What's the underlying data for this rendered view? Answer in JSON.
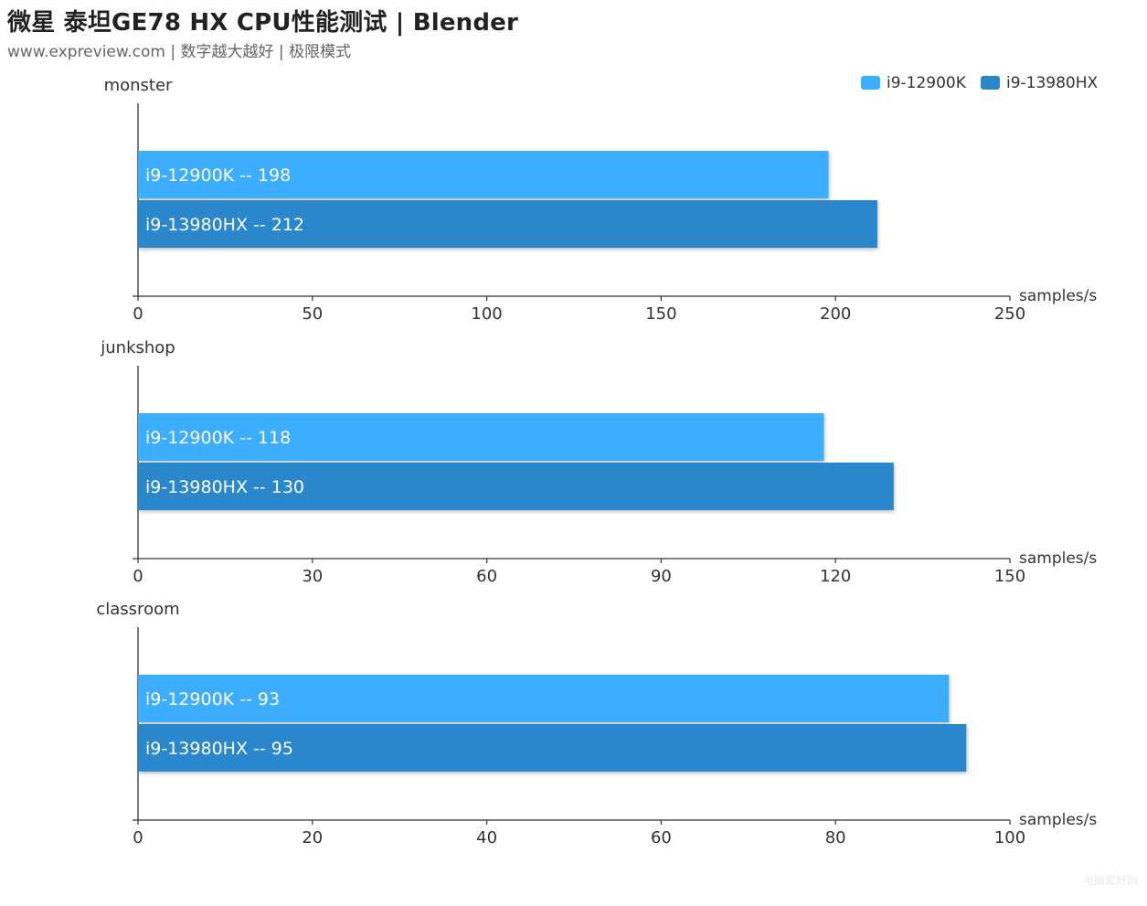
{
  "header": {
    "title": "微星 泰坦GE78 HX CPU性能测试 | Blender",
    "subtitle": "www.expreview.com | 数字越大越好 | 极限模式"
  },
  "legend": [
    {
      "name": "i9-12900K",
      "color": "#3daeff"
    },
    {
      "name": "i9-13980HX",
      "color": "#2a87cb"
    }
  ],
  "chart_data": [
    {
      "type": "bar",
      "orientation": "horizontal",
      "title": "monster",
      "xlabel": "samples/s",
      "xlim": [
        0,
        250
      ],
      "ticks": [
        0,
        50,
        100,
        150,
        200,
        250
      ],
      "series": [
        {
          "name": "i9-12900K",
          "value": 198,
          "label": "i9-12900K  --  198"
        },
        {
          "name": "i9-13980HX",
          "value": 212,
          "label": "i9-13980HX  --  212"
        }
      ]
    },
    {
      "type": "bar",
      "orientation": "horizontal",
      "title": "junkshop",
      "xlabel": "samples/s",
      "xlim": [
        0,
        150
      ],
      "ticks": [
        0,
        30,
        60,
        90,
        120,
        150
      ],
      "series": [
        {
          "name": "i9-12900K",
          "value": 118,
          "label": "i9-12900K  --  118"
        },
        {
          "name": "i9-13980HX",
          "value": 130,
          "label": "i9-13980HX  --  130"
        }
      ]
    },
    {
      "type": "bar",
      "orientation": "horizontal",
      "title": "classroom",
      "xlabel": "samples/s",
      "xlim": [
        0,
        100
      ],
      "ticks": [
        0,
        20,
        40,
        60,
        80,
        100
      ],
      "series": [
        {
          "name": "i9-12900K",
          "value": 93,
          "label": "i9-12900K  --  93"
        },
        {
          "name": "i9-13980HX",
          "value": 95,
          "label": "i9-13980HX  --  95"
        }
      ]
    }
  ],
  "watermark": "电脑爱好网"
}
